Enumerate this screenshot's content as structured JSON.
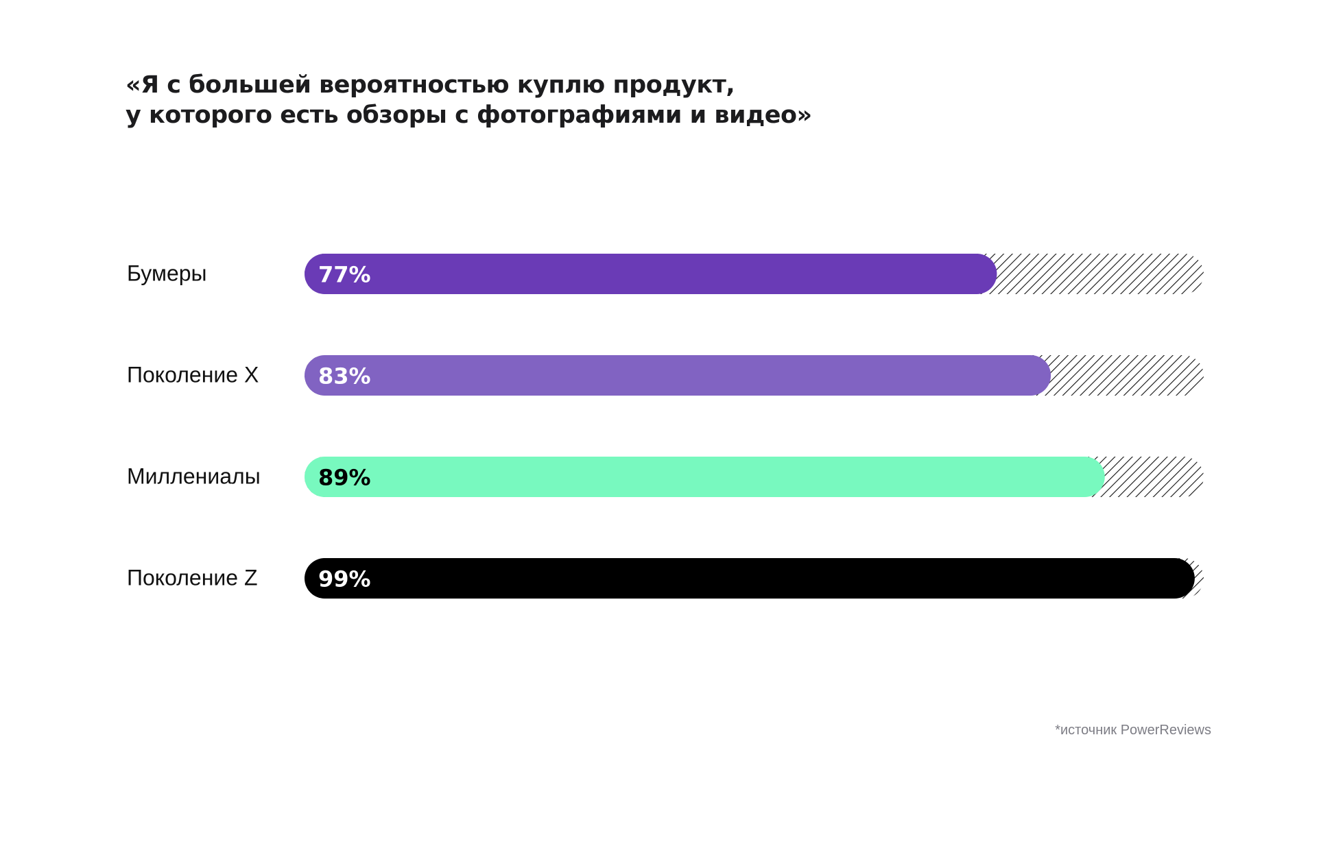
{
  "chart_data": {
    "type": "bar",
    "orientation": "horizontal",
    "title_lines": [
      "«Я с большей вероятностью куплю продукт,",
      "у которого есть обзоры с фотографиями и видео»"
    ],
    "categories": [
      "Бумеры",
      "Поколение X",
      "Миллениалы",
      "Поколение Z"
    ],
    "values": [
      77,
      83,
      89,
      99
    ],
    "value_labels": [
      "77%",
      "83%",
      "89%",
      "99%"
    ],
    "xlim": [
      0,
      100
    ],
    "bar_colors": [
      "#6a3bb6",
      "#8163c2",
      "#78f9bf",
      "#000000"
    ],
    "label_colors": [
      "#ffffff",
      "#ffffff",
      "#000000",
      "#ffffff"
    ],
    "remainder_fill": "diagonal-hatch",
    "grid": false,
    "legend": "none"
  },
  "source": "*источник PowerReviews"
}
